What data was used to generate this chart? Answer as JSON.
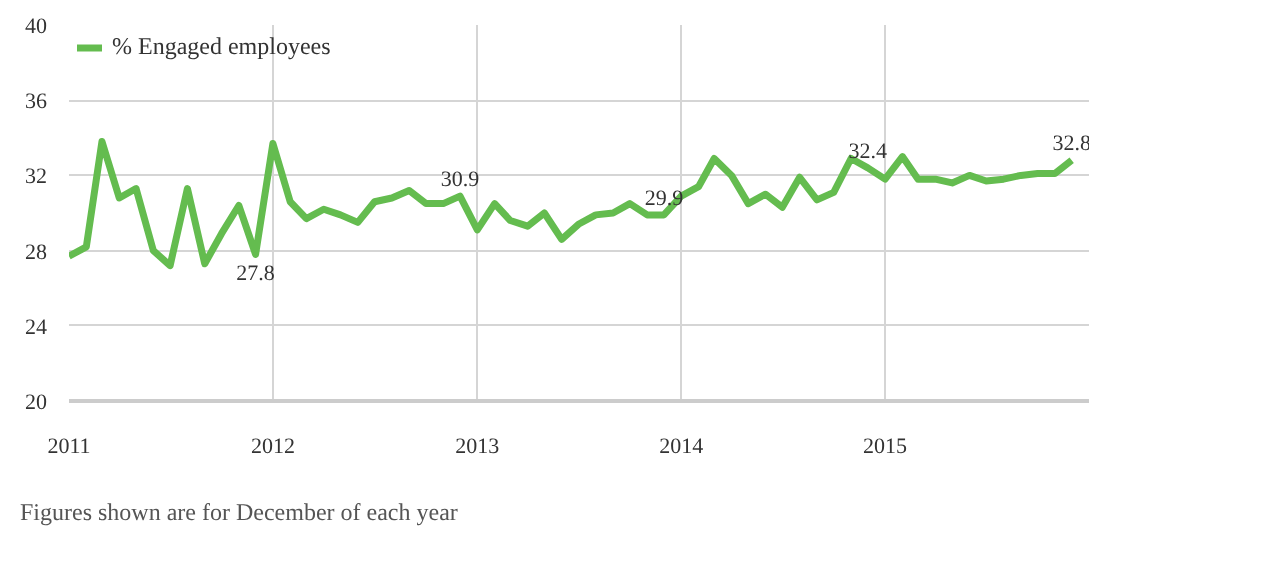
{
  "chart_data": {
    "type": "line",
    "x": [
      "2011-01",
      "2011-02",
      "2011-03",
      "2011-04",
      "2011-05",
      "2011-06",
      "2011-07",
      "2011-08",
      "2011-09",
      "2011-10",
      "2011-11",
      "2011-12",
      "2012-01",
      "2012-02",
      "2012-03",
      "2012-04",
      "2012-05",
      "2012-06",
      "2012-07",
      "2012-08",
      "2012-09",
      "2012-10",
      "2012-11",
      "2012-12",
      "2013-01",
      "2013-02",
      "2013-03",
      "2013-04",
      "2013-05",
      "2013-06",
      "2013-07",
      "2013-08",
      "2013-09",
      "2013-10",
      "2013-11",
      "2013-12",
      "2014-01",
      "2014-02",
      "2014-03",
      "2014-04",
      "2014-05",
      "2014-06",
      "2014-07",
      "2014-08",
      "2014-09",
      "2014-10",
      "2014-11",
      "2014-12",
      "2015-01",
      "2015-02",
      "2015-03",
      "2015-04",
      "2015-05",
      "2015-06",
      "2015-07",
      "2015-08",
      "2015-09",
      "2015-10",
      "2015-11",
      "2015-12"
    ],
    "series": [
      {
        "name": "% Engaged employees",
        "color": "#64bc4f",
        "values": [
          27.7,
          28.2,
          33.8,
          30.8,
          31.3,
          28.0,
          27.2,
          31.3,
          27.3,
          28.9,
          30.4,
          27.8,
          33.7,
          30.6,
          29.7,
          30.2,
          29.9,
          29.5,
          30.6,
          30.8,
          31.2,
          30.5,
          30.5,
          30.9,
          29.1,
          30.5,
          29.6,
          29.3,
          30.0,
          28.6,
          29.4,
          29.9,
          30.0,
          30.5,
          29.9,
          29.9,
          30.9,
          31.4,
          32.9,
          32.0,
          30.5,
          31.0,
          30.3,
          31.9,
          30.7,
          31.1,
          32.9,
          32.4,
          31.8,
          33.0,
          31.8,
          31.8,
          31.6,
          32.0,
          31.7,
          31.8,
          32.0,
          32.1,
          32.1,
          32.8
        ]
      }
    ],
    "xlim": [
      "2011-01",
      "2016-01"
    ],
    "xticks": [
      "2011",
      "2012",
      "2013",
      "2014",
      "2015"
    ],
    "ylim": [
      20,
      40
    ],
    "yticks": [
      20,
      24,
      28,
      32,
      36,
      40
    ],
    "grid": true,
    "legend": "top left",
    "marker": "none",
    "line_style": "solid",
    "annotations": [
      {
        "text": "27.8",
        "x": "2011-12",
        "y": 27.8
      },
      {
        "text": "30.9",
        "x": "2012-12",
        "y": 30.9
      },
      {
        "text": "29.9",
        "x": "2013-12",
        "y": 29.9
      },
      {
        "text": "32.4",
        "x": "2014-12",
        "y": 32.4
      },
      {
        "text": "32.8",
        "x": "2015-12",
        "y": 32.8
      },
      "Figures shown are for December of each year"
    ]
  }
}
